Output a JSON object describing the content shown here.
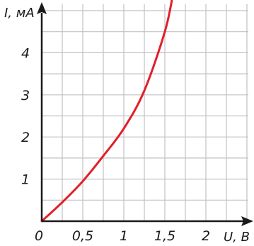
{
  "chart_data": {
    "type": "line",
    "title": "",
    "xlabel": "U, В",
    "ylabel": "I, мА",
    "xlim": [
      0,
      2.5
    ],
    "ylim": [
      0,
      5
    ],
    "grid": true,
    "grid_step": {
      "x": 0.25,
      "y": 0.5
    },
    "x_ticks": [
      {
        "value": 0,
        "label": "0"
      },
      {
        "value": 0.5,
        "label": "0,5"
      },
      {
        "value": 1,
        "label": "1"
      },
      {
        "value": 1.5,
        "label": "1,5"
      },
      {
        "value": 2,
        "label": "2"
      }
    ],
    "y_ticks": [
      {
        "value": 1,
        "label": "1"
      },
      {
        "value": 2,
        "label": "2"
      },
      {
        "value": 3,
        "label": "3"
      },
      {
        "value": 4,
        "label": "4"
      }
    ],
    "series": [
      {
        "color": "#e0202a",
        "x": [
          0,
          0.25,
          0.5,
          0.75,
          1.0,
          1.25,
          1.5,
          1.6
        ],
        "y": [
          0,
          0.45,
          0.95,
          1.55,
          2.2,
          3.1,
          4.5,
          5.4
        ]
      }
    ],
    "colors": {
      "axis": "#1a1a1a",
      "grid": "#c2c2c2"
    }
  }
}
